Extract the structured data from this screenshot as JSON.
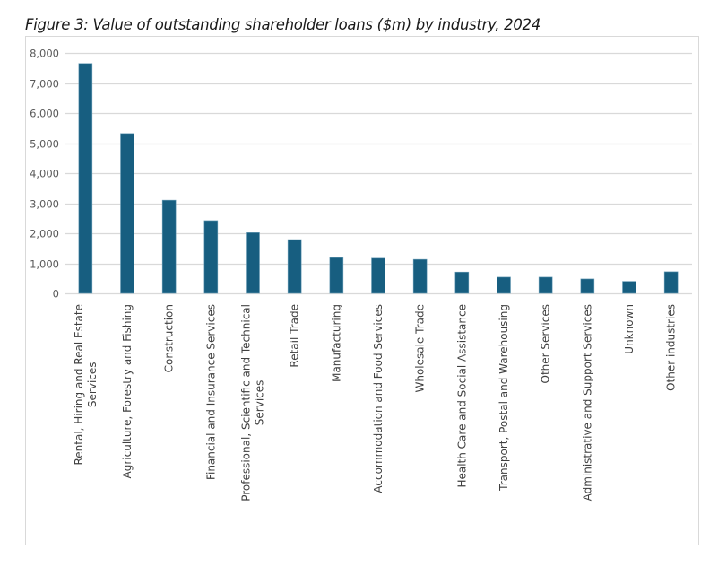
{
  "figure_title": "Figure 3: Value of outstanding shareholder loans ($m) by industry, 2024",
  "colors": {
    "bar": "#175e80",
    "grid": "#d9d9d9",
    "frame": "#d9d9d9"
  },
  "chart_data": {
    "type": "bar",
    "title": "Figure 3: Value of outstanding shareholder loans ($m) by industry, 2024",
    "xlabel": "",
    "ylabel": "",
    "ylim": [
      0,
      8000
    ],
    "yticks": [
      0,
      1000,
      2000,
      3000,
      4000,
      5000,
      6000,
      7000,
      8000
    ],
    "ytick_labels": [
      "0",
      "1,000",
      "2,000",
      "3,000",
      "4,000",
      "5,000",
      "6,000",
      "7,000",
      "8,000"
    ],
    "grid": true,
    "legend": "none",
    "categories": [
      [
        "Rental, Hiring and Real Estate",
        "Services"
      ],
      [
        "Agriculture, Forestry and Fishing"
      ],
      [
        "Construction"
      ],
      [
        "Financial and Insurance Services"
      ],
      [
        "Professional, Scientific and Technical",
        "Services"
      ],
      [
        "Retail Trade"
      ],
      [
        "Manufacturing"
      ],
      [
        "Accommodation and Food Services"
      ],
      [
        "Wholesale Trade"
      ],
      [
        "Health Care and Social Assistance"
      ],
      [
        "Transport, Postal and Warehousing"
      ],
      [
        "Other Services"
      ],
      [
        "Administrative and Support Services"
      ],
      [
        "Unknown"
      ],
      [
        "Other industries"
      ]
    ],
    "series": [
      {
        "name": "Value of outstanding shareholder loans ($m)",
        "values": [
          7650,
          5320,
          3100,
          2420,
          2020,
          1790,
          1190,
          1170,
          1130,
          710,
          540,
          540,
          480,
          400,
          720
        ]
      }
    ]
  }
}
